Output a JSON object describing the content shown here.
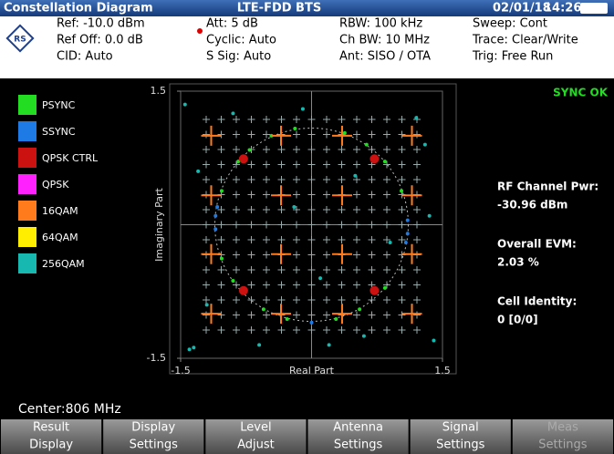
{
  "header": {
    "title": "Constellation Diagram",
    "mode": "LTE-FDD BTS",
    "date": "02/01/18",
    "time": "14:26",
    "params": [
      [
        "Ref: -10.0 dBm",
        "Ref Off: 0.0 dB",
        "CID: Auto"
      ],
      [
        "Att: 5 dB",
        "Cyclic: Auto",
        "S Sig: Auto"
      ],
      [
        "RBW:  100 kHz",
        "Ch BW:  10 MHz",
        "Ant: SISO / OTA"
      ],
      [
        "Sweep: Cont",
        "Trace: Clear/Write",
        "Trig:  Free Run"
      ]
    ]
  },
  "chart_data": {
    "type": "scatter",
    "xlabel": "Real Part",
    "ylabel": "Imaginary Part",
    "xlim": [
      -1.5,
      1.5
    ],
    "ylim": [
      -1.5,
      1.5
    ],
    "xticks": [
      -1.5,
      1.5
    ],
    "yticks": [
      -1.5,
      1.5
    ],
    "series": [
      {
        "name": "PSYNC",
        "color": "#22dd22",
        "marker": "dot",
        "x": [
          -0.19,
          -0.46,
          -0.71,
          -0.84,
          -1.03,
          -1.03,
          -0.9,
          -0.55,
          -0.28,
          0.28,
          0.55,
          0.84,
          0.84,
          0.63,
          0.38,
          1.03
        ],
        "values": [
          1.08,
          1.0,
          0.84,
          0.71,
          0.38,
          -0.38,
          -0.63,
          -0.95,
          -1.06,
          -1.06,
          -0.95,
          -0.71,
          0.71,
          0.9,
          1.03,
          0.38
        ]
      },
      {
        "name": "SSYNC",
        "color": "#1e7be6",
        "marker": "dot",
        "x": [
          -1.1,
          -1.1,
          -1.08,
          1.1,
          1.1,
          1.08,
          0.0
        ],
        "values": [
          0.1,
          -0.05,
          0.2,
          0.05,
          -0.1,
          -0.2,
          -1.1
        ]
      },
      {
        "name": "QPSK CTRL",
        "color": "#cc1111",
        "marker": "big",
        "x": [
          -0.78,
          0.72,
          -0.78,
          0.72
        ],
        "values": [
          0.74,
          0.74,
          -0.74,
          -0.74
        ]
      },
      {
        "name": "QPSK",
        "color": "#ff22ff",
        "marker": "dot",
        "x": [],
        "values": []
      },
      {
        "name": "16QAM",
        "color": "#ff7b1c",
        "marker": "cross",
        "x": [
          -1.15,
          -0.35,
          0.35,
          1.15,
          -1.15,
          -0.35,
          0.35,
          1.15,
          -1.15,
          -0.35,
          0.35,
          1.15,
          -1.15,
          -0.35,
          0.35,
          1.15
        ],
        "values": [
          1.0,
          1.0,
          1.0,
          1.0,
          0.33,
          0.33,
          0.33,
          0.33,
          -0.33,
          -0.33,
          -0.33,
          -0.33,
          -1.0,
          -1.0,
          -1.0,
          -1.0
        ]
      },
      {
        "name": "64QAM",
        "color": "#ffee00",
        "marker": "dot",
        "x": [],
        "values": []
      },
      {
        "name": "256QAM",
        "color": "#17b8b0",
        "marker": "dot",
        "x": [
          -1.45,
          -1.4,
          -1.3,
          1.3,
          1.4,
          0.2,
          -0.6,
          1.2,
          -1.2,
          0.5,
          -0.2,
          0.9,
          -1.35,
          -0.1,
          0.6,
          -0.9,
          1.35,
          0.1
        ],
        "values": [
          1.35,
          -1.4,
          0.6,
          0.9,
          -1.3,
          -1.35,
          -1.35,
          1.2,
          -0.9,
          0.55,
          0.2,
          -0.2,
          -1.38,
          1.3,
          -1.25,
          1.25,
          0.1,
          -0.6
        ]
      }
    ]
  },
  "panel": {
    "status": "SYNC OK",
    "items": [
      [
        "RF Channel Pwr:",
        "-30.96 dBm"
      ],
      [
        "Overall EVM:",
        "2.03 %"
      ],
      [
        "Cell Identity:",
        "0  [0/0]"
      ]
    ]
  },
  "footer": {
    "center": "Center:806 MHz",
    "softkeys": [
      [
        "Result",
        "Display"
      ],
      [
        "Display",
        "Settings"
      ],
      [
        "Level",
        "Adjust"
      ],
      [
        "Antenna",
        "Settings"
      ],
      [
        "Signal",
        "Settings"
      ],
      [
        "Meas",
        "Settings"
      ]
    ]
  }
}
